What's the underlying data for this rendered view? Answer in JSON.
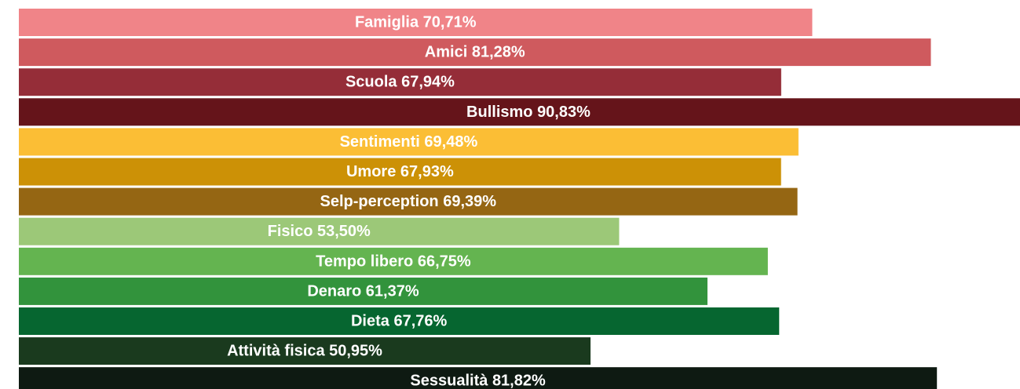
{
  "chart_data": {
    "type": "bar",
    "categories": [
      "Famiglia",
      "Amici",
      "Scuola",
      "Bullismo",
      "Sentimenti",
      "Umore",
      "Selp-perception",
      "Fisico",
      "Tempo libero",
      "Denaro",
      "Dieta",
      "Attività fisica",
      "Sessualità"
    ],
    "values": [
      70.71,
      81.28,
      67.94,
      90.83,
      69.48,
      67.93,
      69.39,
      53.5,
      66.75,
      61.37,
      67.76,
      50.95,
      81.82
    ],
    "value_labels": [
      "70,71%",
      "81,28%",
      "67,94%",
      "90,83%",
      "69,48%",
      "67,93%",
      "69,39%",
      "53,50%",
      "66,75%",
      "61,37%",
      "67,76%",
      "50,95%",
      "81,82%"
    ],
    "colors": [
      "#f08488",
      "#cf5a5e",
      "#952d38",
      "#65141a",
      "#fbbe35",
      "#cc9106",
      "#956613",
      "#9cc878",
      "#64b450",
      "#32933c",
      "#066630",
      "#1a3a1e",
      "#0e1a12"
    ]
  }
}
